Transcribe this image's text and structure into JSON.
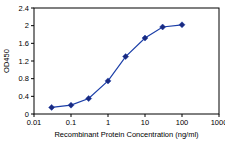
{
  "chart_data": {
    "type": "line",
    "x_label": "Recombinant Protein Concentration (ng/ml)",
    "y_label": "OD450",
    "x": [
      0.03,
      0.1,
      0.3,
      1,
      3,
      10,
      30,
      100
    ],
    "values": [
      0.15,
      0.2,
      0.35,
      0.75,
      1.3,
      1.72,
      1.97,
      2.02
    ],
    "color": "#1c3fa8",
    "marker": "diamond",
    "log": "x",
    "grid": false,
    "xlim": [
      0.01,
      1000
    ],
    "xticks": [
      0.01,
      0.1,
      1,
      10,
      100,
      1000
    ],
    "ylim": [
      0,
      2.4
    ],
    "yticks": [
      0,
      0.4,
      0.8,
      1.2,
      1.6,
      2,
      2.4
    ]
  }
}
